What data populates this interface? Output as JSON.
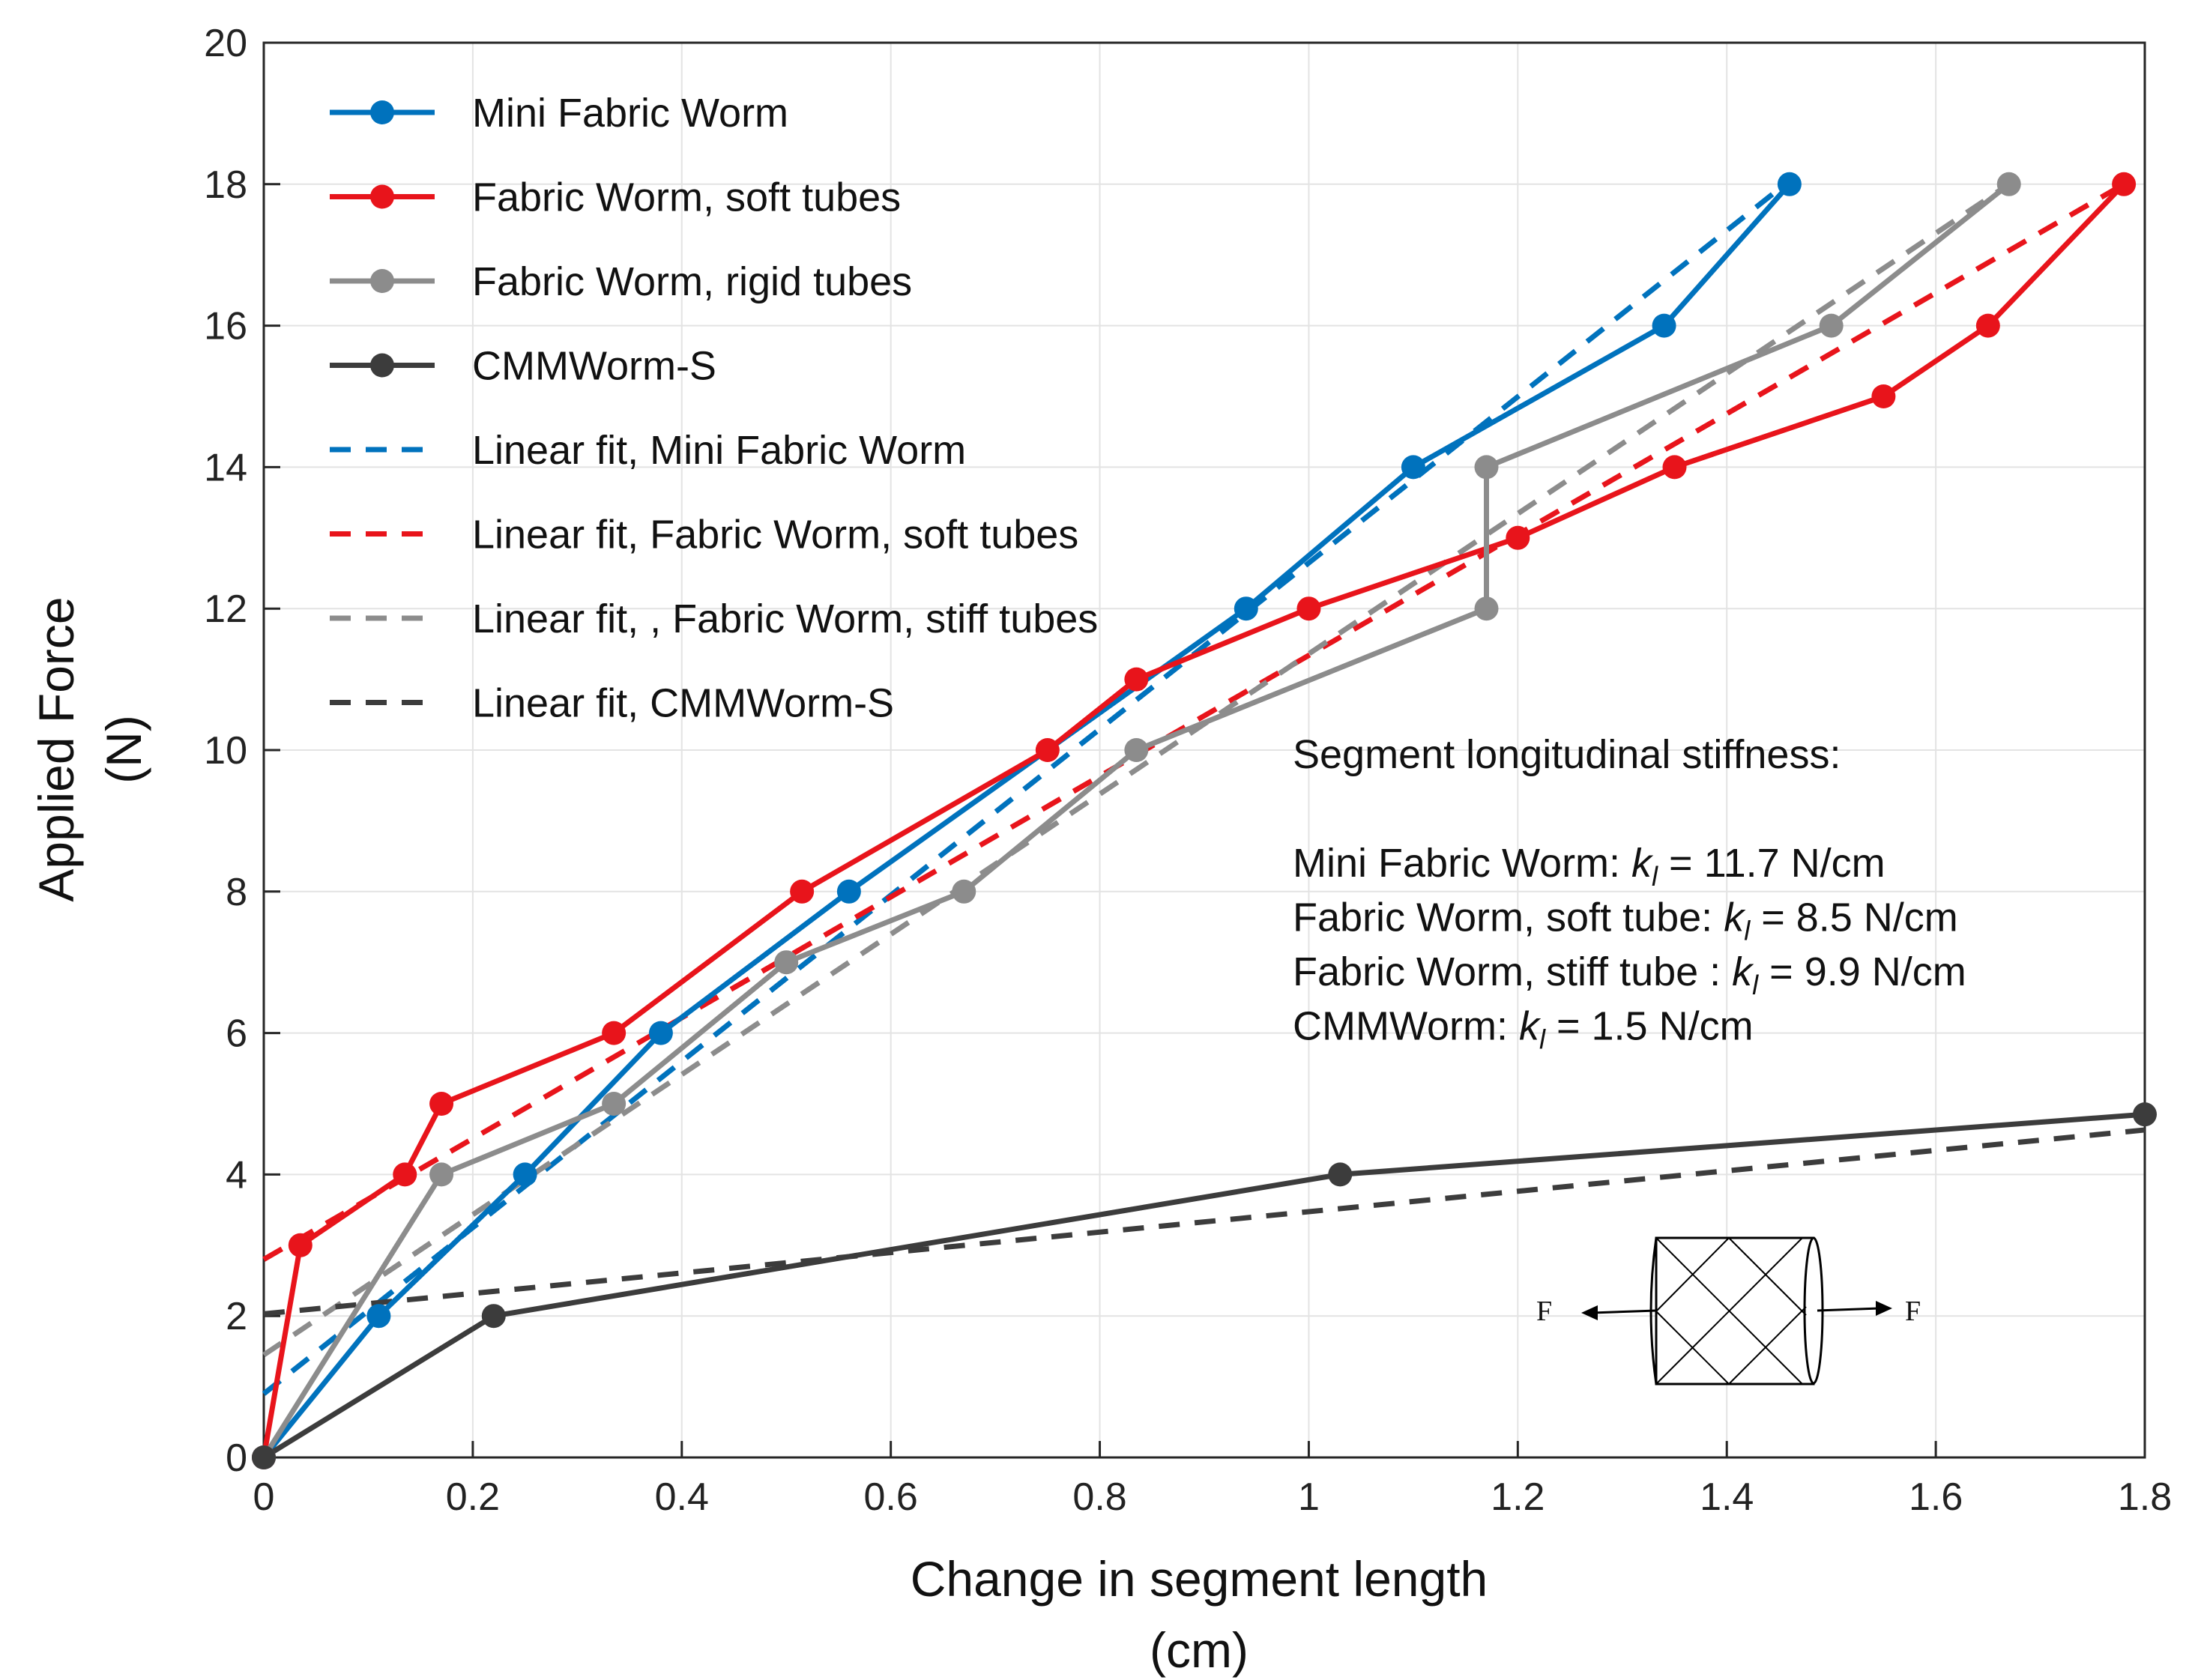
{
  "chart_data": {
    "type": "line",
    "xlabel": "Change in segment length",
    "xlabel_unit": "(cm)",
    "ylabel": "Applied Force",
    "ylabel_unit": "(N)",
    "xlim": [
      0,
      1.8
    ],
    "ylim": [
      0,
      20
    ],
    "xticks": [
      0,
      0.2,
      0.4,
      0.6,
      0.8,
      1,
      1.2,
      1.4,
      1.6,
      1.8
    ],
    "xtick_labels": [
      "0",
      "0.2",
      "0.4",
      "0.6",
      "0.8",
      "1",
      "1.2",
      "1.4",
      "1.6",
      "1.8"
    ],
    "yticks": [
      0,
      2,
      4,
      6,
      8,
      10,
      12,
      14,
      16,
      18,
      20
    ],
    "ytick_labels": [
      "0",
      "2",
      "4",
      "6",
      "8",
      "10",
      "12",
      "14",
      "16",
      "18",
      "20"
    ],
    "grid": true,
    "legend_position": "top-left",
    "series": [
      {
        "name": "Mini Fabric Worm",
        "style": "solid-marker",
        "color": "#0072BD",
        "x": [
          0,
          0.11,
          0.25,
          0.38,
          0.56,
          0.94,
          1.1,
          1.34,
          1.46
        ],
        "y": [
          0,
          2,
          4,
          6,
          8,
          12,
          14,
          16,
          18
        ]
      },
      {
        "name": "Fabric Worm, soft tubes",
        "style": "solid-marker",
        "color": "#E8141B",
        "x": [
          0,
          0.035,
          0.135,
          0.17,
          0.335,
          0.515,
          0.75,
          0.835,
          1.0,
          1.2,
          1.35,
          1.55,
          1.65,
          1.78
        ],
        "y": [
          0,
          3,
          4,
          5,
          6,
          8,
          10,
          11,
          12,
          13,
          14,
          15,
          16,
          18
        ]
      },
      {
        "name": "Fabric Worm, rigid tubes",
        "style": "solid-marker",
        "color": "#8C8C8C",
        "x": [
          0,
          0.17,
          0.335,
          0.5,
          0.67,
          0.835,
          1.17,
          1.17,
          1.5,
          1.67
        ],
        "y": [
          0,
          4,
          5,
          7,
          8,
          10,
          12,
          14,
          16,
          18
        ]
      },
      {
        "name": "CMMWorm-S",
        "style": "solid-marker",
        "color": "#3C3C3C",
        "x": [
          0,
          0.22,
          1.03,
          1.8
        ],
        "y": [
          0,
          2,
          4,
          4.85
        ]
      },
      {
        "name": "Linear fit, Mini Fabric Worm",
        "style": "dashed",
        "color": "#0072BD",
        "x": [
          0,
          1.46
        ],
        "y": [
          0.9,
          18.05
        ]
      },
      {
        "name": "Linear fit, Fabric Worm, soft tubes",
        "style": "dashed",
        "color": "#E8141B",
        "x": [
          0,
          1.78
        ],
        "y": [
          2.8,
          18.0
        ]
      },
      {
        "name": "Linear fit, , Fabric Worm, stiff tubes",
        "style": "dashed",
        "color": "#8C8C8C",
        "x": [
          0,
          1.67
        ],
        "y": [
          1.45,
          18.0
        ]
      },
      {
        "name": "Linear fit, CMMWorm-S",
        "style": "dashed",
        "color": "#3C3C3C",
        "x": [
          0,
          1.8
        ],
        "y": [
          2.03,
          4.63
        ]
      }
    ],
    "annotation": {
      "title": "Segment longitudinal stiffness:",
      "lines": [
        {
          "prefix": "Mini Fabric Worm: ",
          "symbol": "k",
          "subscript": "l",
          "suffix": " = 11.7 N/cm"
        },
        {
          "prefix": "Fabric Worm, soft tube: ",
          "symbol": "k",
          "subscript": "l",
          "suffix": " = 8.5 N/cm"
        },
        {
          "prefix": "Fabric Worm, stiff tube : ",
          "symbol": "k",
          "subscript": "l",
          "suffix": " = 9.9 N/cm"
        },
        {
          "prefix": "CMMWorm: ",
          "symbol": "k",
          "subscript": "l",
          "suffix": " = 1.5 N/cm"
        }
      ]
    },
    "inset_diagram": {
      "left_label": "F",
      "right_label": "F"
    }
  }
}
